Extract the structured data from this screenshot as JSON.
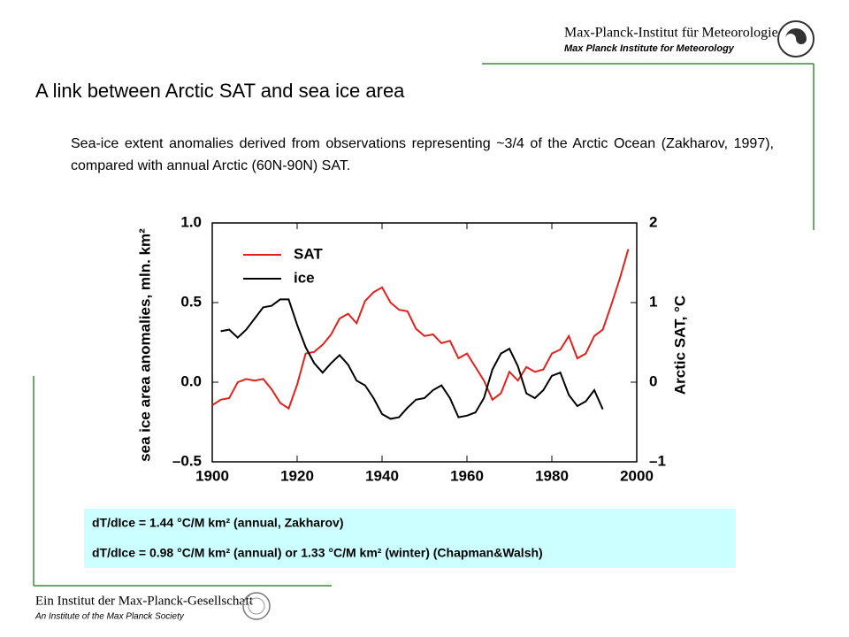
{
  "header": {
    "institute_de": "Max-Planck-Institut für Meteorologie",
    "institute_en": "Max Planck Institute for Meteorology"
  },
  "title": "A link between Arctic SAT and sea ice area",
  "description": "Sea-ice extent anomalies derived from observations representing ~3/4 of the Arctic Ocean (Zakharov, 1997), compared with annual Arctic (60N-90N) SAT.",
  "chart_data": {
    "type": "line",
    "x": [
      1900,
      1902,
      1904,
      1906,
      1908,
      1910,
      1912,
      1914,
      1916,
      1918,
      1920,
      1922,
      1924,
      1926,
      1928,
      1930,
      1932,
      1934,
      1936,
      1938,
      1940,
      1942,
      1944,
      1946,
      1948,
      1950,
      1952,
      1954,
      1956,
      1958,
      1960,
      1962,
      1964,
      1966,
      1968,
      1970,
      1972,
      1974,
      1976,
      1978,
      1980,
      1982,
      1984,
      1986,
      1988,
      1990,
      1992,
      1994,
      1996,
      1998
    ],
    "series": [
      {
        "name": "SAT",
        "color": "#e3211c",
        "axis": "y2",
        "values": [
          -0.29,
          -0.22,
          -0.2,
          0,
          0.04,
          0.02,
          0.04,
          -0.09,
          -0.26,
          -0.33,
          -0.03,
          0.36,
          0.38,
          0.47,
          0.6,
          0.8,
          0.86,
          0.74,
          1.02,
          1.13,
          1.19,
          1.0,
          0.91,
          0.89,
          0.67,
          0.58,
          0.6,
          0.49,
          0.52,
          0.3,
          0.36,
          0.19,
          0.02,
          -0.22,
          -0.14,
          0.13,
          0.02,
          0.19,
          0.13,
          0.16,
          0.36,
          0.41,
          0.58,
          0.3,
          0.36,
          0.58,
          0.66,
          0.97,
          1.3,
          1.67
        ]
      },
      {
        "name": "ice",
        "color": "#000000",
        "values": [
          null,
          0.32,
          0.33,
          0.28,
          0.33,
          0.4,
          0.47,
          0.48,
          0.52,
          0.52,
          0.36,
          0.22,
          0.12,
          0.06,
          0.12,
          0.17,
          0.11,
          0.01,
          -0.02,
          -0.1,
          -0.2,
          -0.23,
          -0.22,
          -0.16,
          -0.11,
          -0.1,
          -0.05,
          -0.02,
          -0.1,
          -0.22,
          -0.21,
          -0.19,
          -0.1,
          0.08,
          0.18,
          0.21,
          0.1,
          -0.07,
          -0.1,
          -0.05,
          0.04,
          0.06,
          -0.08,
          -0.15,
          -0.12,
          -0.05,
          -0.17,
          null,
          null,
          null
        ]
      }
    ],
    "xlim": [
      1900,
      2000
    ],
    "xticks": [
      1900,
      1920,
      1940,
      1960,
      1980,
      2000
    ],
    "ylim": [
      -0.5,
      1.0
    ],
    "yticks": [
      {
        "value": -0.5,
        "label": "–0.5"
      },
      {
        "value": 0,
        "label": "0.0"
      },
      0.5,
      {
        "value": 1.0,
        "label": "1.0"
      }
    ],
    "y2lim": [
      -1,
      2
    ],
    "y2ticks": [
      {
        "value": -1,
        "label": "–1"
      },
      0,
      1,
      2
    ],
    "ylabel": "sea ice area anomalies, mln. km²",
    "y2label": "Arctic SAT, °C",
    "legend": "upper left"
  },
  "notes": [
    "dT/dIce = 1.44 °C/M km² (annual, Zakharov)",
    "dT/dIce = 0.98 °C/M km² (annual) or 1.33 °C/M km² (winter) (Chapman&Walsh)"
  ],
  "footer": {
    "society_de": "Ein Institut der Max-Planck-Gesellschaft",
    "society_en": "An Institute of the Max Planck Society"
  }
}
